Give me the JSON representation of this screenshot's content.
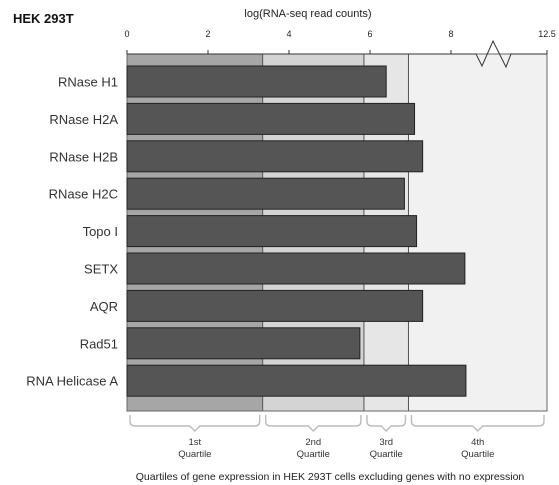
{
  "chart_data": {
    "type": "bar",
    "orientation": "horizontal",
    "title": "HEK 293T",
    "xlabel": "log(RNA-seq read counts)",
    "x_ticks": [
      "0",
      "2",
      "4",
      "6",
      "8",
      "12.5"
    ],
    "xlim": [
      0,
      12.5
    ],
    "axis_break": "between 8 and 12.5",
    "categories": [
      "RNase H1",
      "RNase H2A",
      "RNase H2B",
      "RNase H2C",
      "Topo I",
      "SETX",
      "AQR",
      "Rad51",
      "RNA Helicase A"
    ],
    "values": [
      6.4,
      7.1,
      7.3,
      6.85,
      7.15,
      8.65,
      7.3,
      5.75,
      8.7
    ],
    "quartiles": [
      {
        "label": "1st",
        "sublabel": "Quartile",
        "range": [
          0,
          3.35
        ],
        "color": "#a6a6a6"
      },
      {
        "label": "2nd",
        "sublabel": "Quartile",
        "range": [
          3.35,
          5.85
        ],
        "color": "#d4d4d4"
      },
      {
        "label": "3rd",
        "sublabel": "Quartile",
        "range": [
          5.85,
          6.95
        ],
        "color": "#e6e6e6"
      },
      {
        "label": "4th",
        "sublabel": "Quartile",
        "range": [
          6.95,
          12.5
        ],
        "color": "#f1f1f1"
      }
    ],
    "bar_color": "#555555",
    "footnote": "Quartiles of gene expression in HEK 293T cells excluding genes with no expression"
  }
}
